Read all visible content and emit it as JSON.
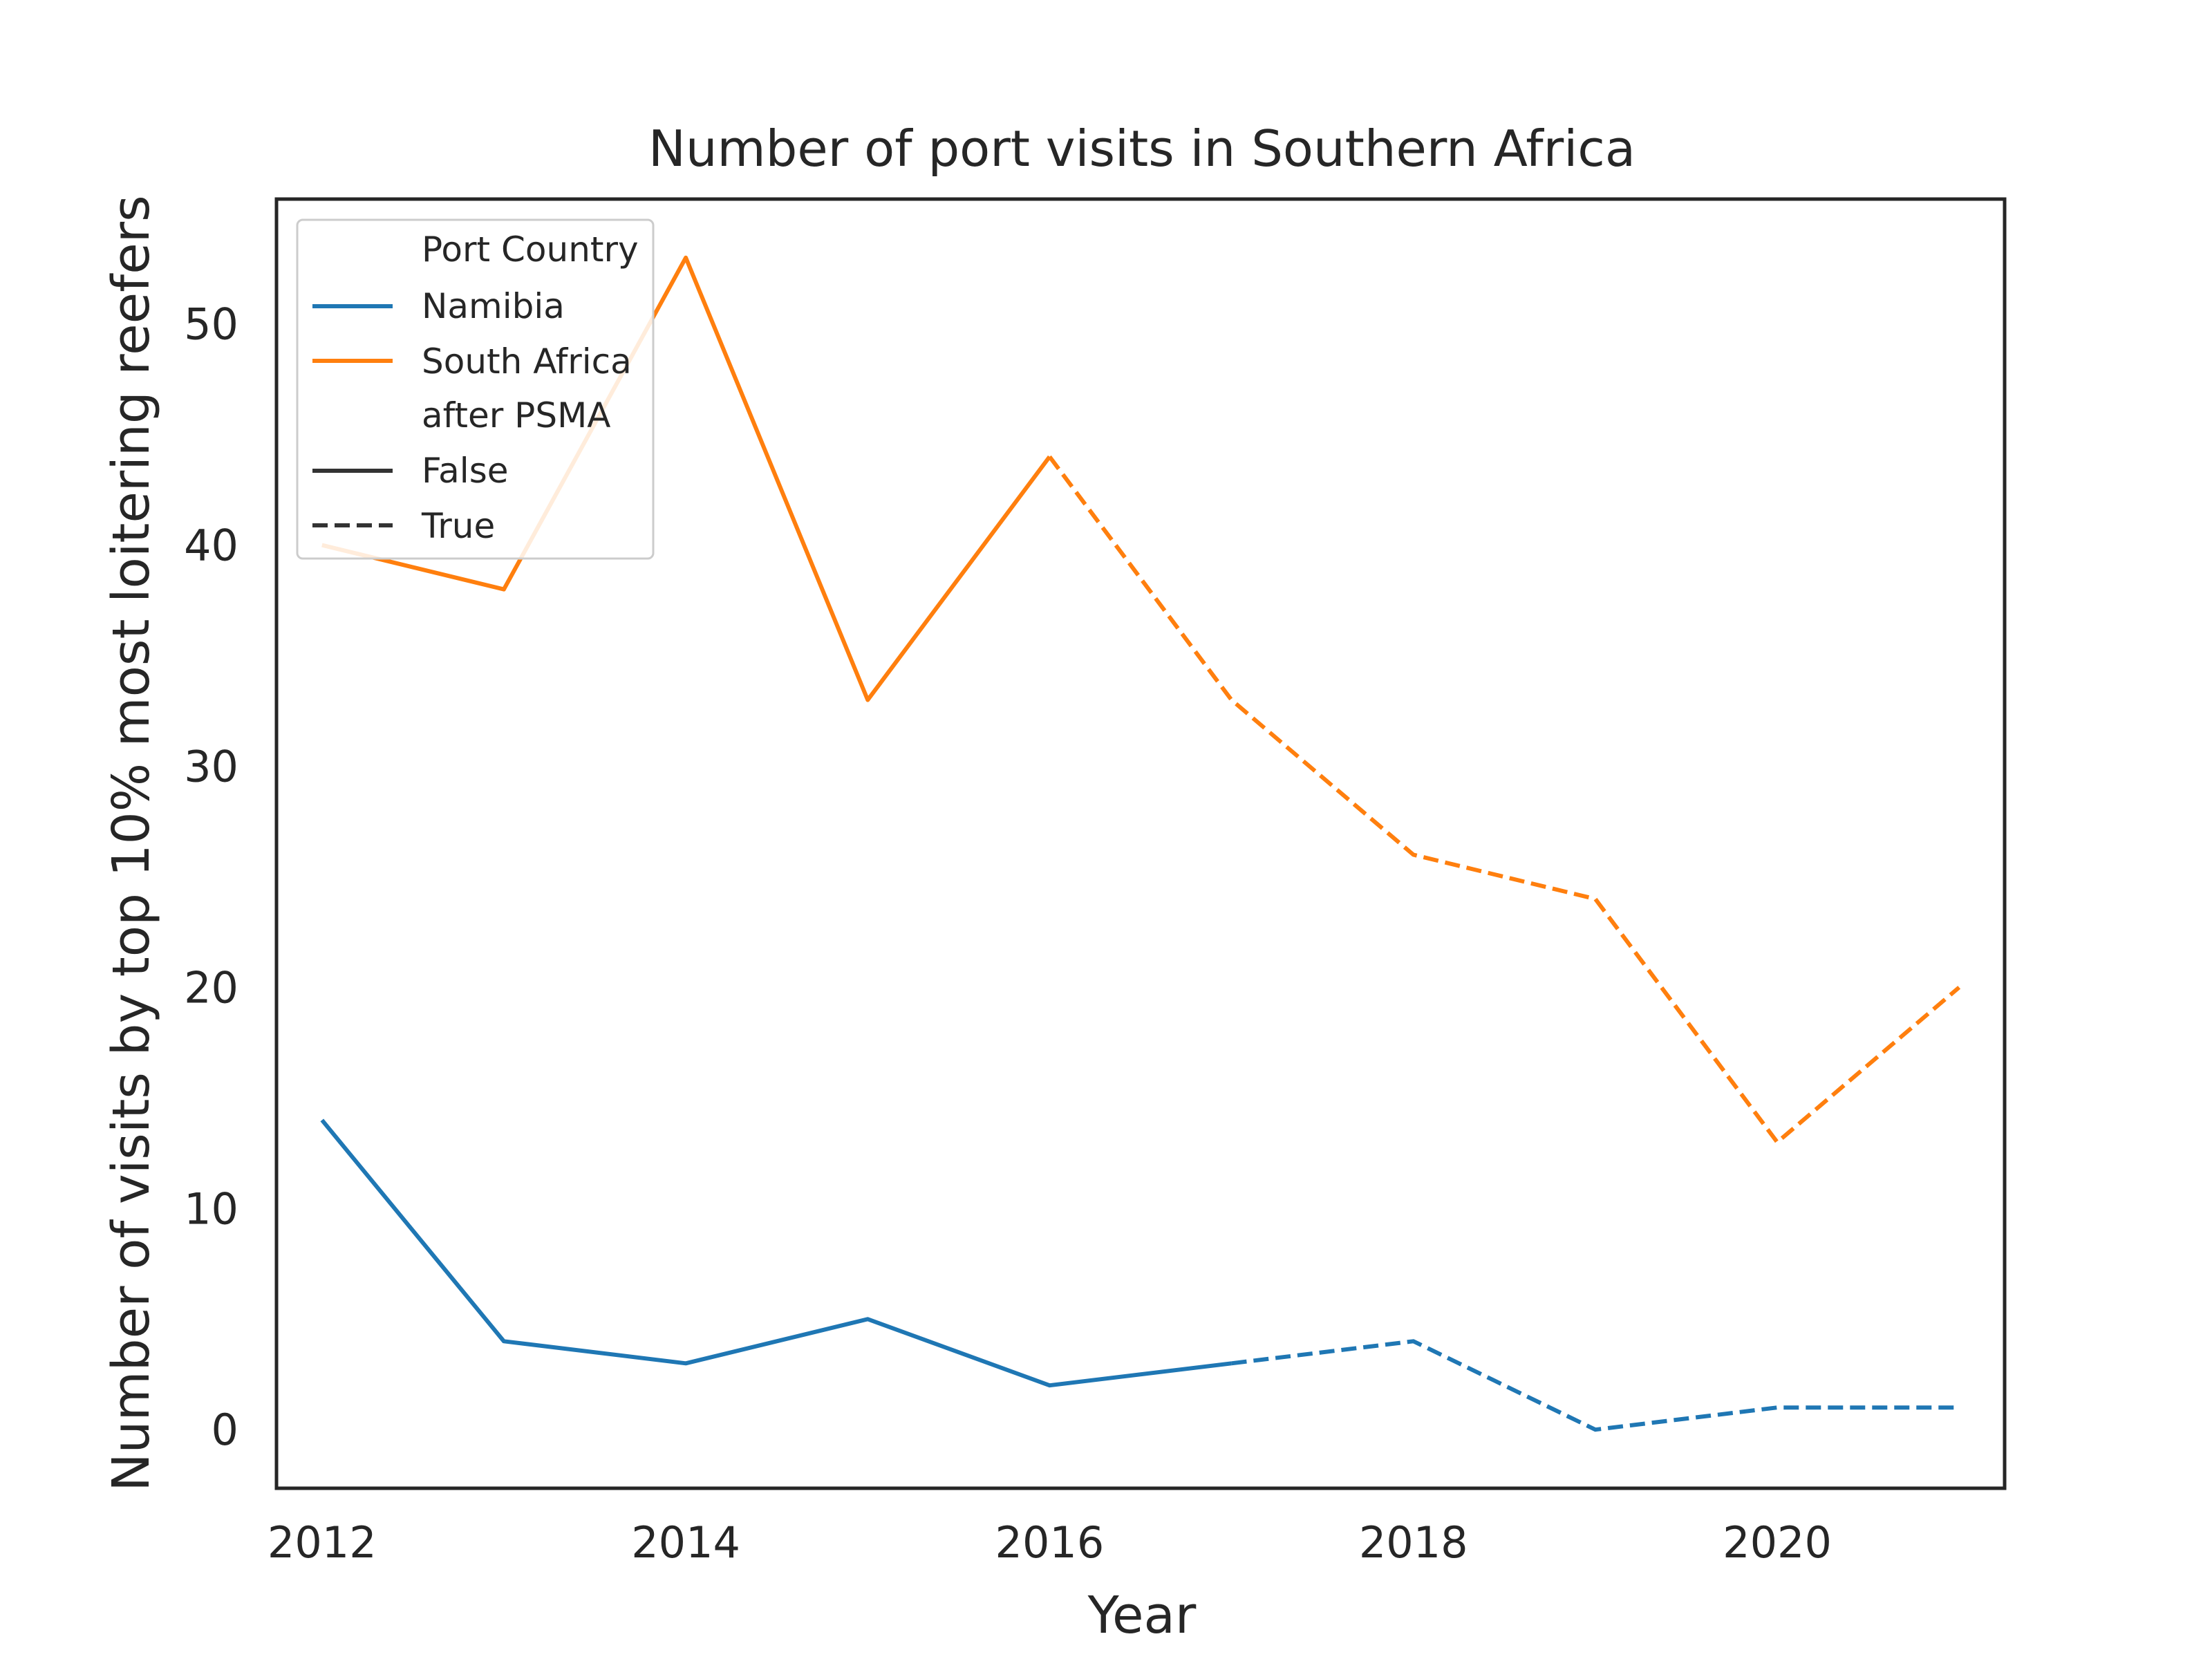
{
  "chart_data": {
    "type": "line",
    "title": "Number of port visits in Southern Africa",
    "xlabel": "Year",
    "ylabel": "Number of visits by top 10% most loitering reefers",
    "xlim": [
      2011.75,
      2021.25
    ],
    "ylim": [
      -2.65,
      55.65
    ],
    "x_ticks": [
      2012,
      2014,
      2016,
      2018,
      2020
    ],
    "y_ticks": [
      0,
      10,
      20,
      30,
      40,
      50
    ],
    "grid": false,
    "legend_position": "top-left",
    "legend": {
      "hue_title": "Port Country",
      "style_title": "after PSMA",
      "style_entries": [
        {
          "label": "False",
          "dash": "solid"
        },
        {
          "label": "True",
          "dash": "dashed"
        }
      ]
    },
    "series": [
      {
        "name": "Namibia",
        "color": "#1f77b4",
        "segments": [
          {
            "after_psma": "False",
            "x": [
              2012,
              2013,
              2014,
              2015,
              2016,
              2017
            ],
            "y": [
              14,
              4,
              3,
              5,
              2,
              3
            ]
          },
          {
            "after_psma": "True",
            "x": [
              2017,
              2018,
              2019,
              2020,
              2021
            ],
            "y": [
              3,
              4,
              0,
              1,
              1
            ]
          }
        ]
      },
      {
        "name": "South Africa",
        "color": "#ff7f0e",
        "segments": [
          {
            "after_psma": "False",
            "x": [
              2012,
              2013,
              2014,
              2015,
              2016
            ],
            "y": [
              40,
              38,
              53,
              33,
              44
            ]
          },
          {
            "after_psma": "True",
            "x": [
              2016,
              2017,
              2018,
              2019,
              2020,
              2021
            ],
            "y": [
              44,
              33,
              26,
              24,
              13,
              20
            ]
          }
        ]
      }
    ]
  }
}
